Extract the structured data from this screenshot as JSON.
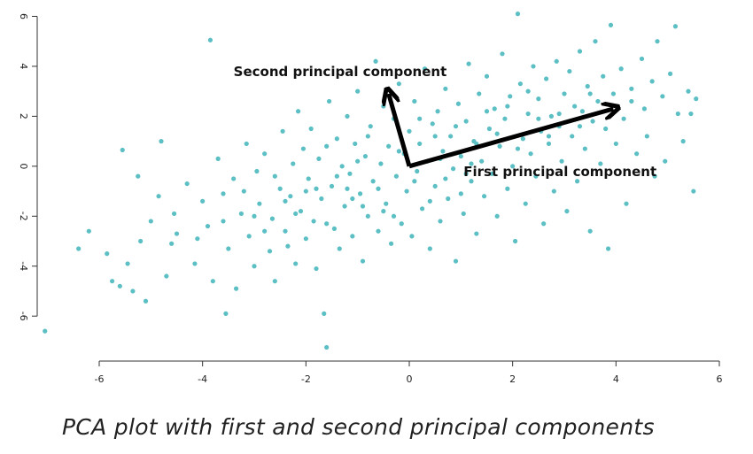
{
  "caption": "PCA plot with first and second principal components",
  "chart_data": {
    "type": "scatter",
    "title": "",
    "xlabel": "",
    "ylabel": "",
    "xlim": [
      -7.2,
      6.0
    ],
    "ylim": [
      -7.8,
      6.3
    ],
    "xticks": [
      -6,
      -4,
      -2,
      0,
      2,
      4,
      6
    ],
    "yticks": [
      -6,
      -4,
      -2,
      0,
      2,
      4,
      6
    ],
    "grid": false,
    "point_color": "#5bbfc4",
    "arrow_color": "#000000",
    "annotations": [
      {
        "text": "Second principal component",
        "x": -3.4,
        "y": 3.6
      },
      {
        "text": "First principal component",
        "x": 1.05,
        "y": -0.4
      }
    ],
    "arrows": [
      {
        "name": "second-principal-component",
        "from": [
          0,
          0
        ],
        "to": [
          -0.4,
          2.9
        ]
      },
      {
        "name": "first-principal-component",
        "from": [
          0,
          0
        ],
        "to": [
          3.95,
          2.3
        ]
      }
    ],
    "points": [
      [
        -7.05,
        -6.6
      ],
      [
        -6.4,
        -3.3
      ],
      [
        -6.2,
        -2.6
      ],
      [
        -5.85,
        -3.5
      ],
      [
        -5.75,
        -4.6
      ],
      [
        -5.6,
        -4.8
      ],
      [
        -5.45,
        -3.9
      ],
      [
        -5.35,
        -5.0
      ],
      [
        -5.2,
        -3.0
      ],
      [
        -5.1,
        -5.4
      ],
      [
        -5.55,
        0.65
      ],
      [
        -5.25,
        -0.4
      ],
      [
        -5.0,
        -2.2
      ],
      [
        -4.85,
        -1.2
      ],
      [
        -4.8,
        1.0
      ],
      [
        -4.6,
        -3.1
      ],
      [
        -4.55,
        -1.9
      ],
      [
        -4.5,
        -2.7
      ],
      [
        -4.7,
        -4.4
      ],
      [
        -4.3,
        -0.7
      ],
      [
        -4.15,
        -3.9
      ],
      [
        -4.0,
        -1.4
      ],
      [
        -3.9,
        -2.4
      ],
      [
        -3.85,
        5.05
      ],
      [
        -3.8,
        -4.6
      ],
      [
        -3.7,
        0.3
      ],
      [
        -3.6,
        -1.1
      ],
      [
        -3.55,
        -5.9
      ],
      [
        -3.5,
        -3.3
      ],
      [
        -3.4,
        -0.5
      ],
      [
        -3.35,
        -4.9
      ],
      [
        -3.25,
        -1.9
      ],
      [
        -3.15,
        0.9
      ],
      [
        -3.1,
        -2.8
      ],
      [
        -3.0,
        -4.0
      ],
      [
        -2.95,
        -0.2
      ],
      [
        -2.9,
        -1.5
      ],
      [
        -2.8,
        0.5
      ],
      [
        -2.7,
        -3.4
      ],
      [
        -2.65,
        -2.1
      ],
      [
        -2.6,
        -4.6
      ],
      [
        -2.5,
        -0.9
      ],
      [
        -2.45,
        1.4
      ],
      [
        -2.4,
        -2.6
      ],
      [
        -2.3,
        -1.2
      ],
      [
        -2.25,
        0.1
      ],
      [
        -2.2,
        -3.9
      ],
      [
        -2.15,
        2.2
      ],
      [
        -2.1,
        -1.8
      ],
      [
        -2.05,
        0.7
      ],
      [
        -2.0,
        -2.9
      ],
      [
        -1.95,
        -0.5
      ],
      [
        -1.9,
        1.5
      ],
      [
        -1.85,
        -2.2
      ],
      [
        -1.8,
        -4.1
      ],
      [
        -1.75,
        0.3
      ],
      [
        -1.7,
        -1.3
      ],
      [
        -1.65,
        -5.9
      ],
      [
        -1.6,
        -7.25
      ],
      [
        -1.55,
        2.6
      ],
      [
        -1.5,
        -0.8
      ],
      [
        -1.45,
        -2.5
      ],
      [
        -1.4,
        1.1
      ],
      [
        -1.35,
        -3.3
      ],
      [
        -1.3,
        0.0
      ],
      [
        -1.25,
        -1.6
      ],
      [
        -1.2,
        2.0
      ],
      [
        -1.15,
        -0.3
      ],
      [
        -1.1,
        -2.8
      ],
      [
        -1.05,
        0.9
      ],
      [
        -1.0,
        3.0
      ],
      [
        -0.95,
        -1.1
      ],
      [
        -0.9,
        -3.8
      ],
      [
        -0.85,
        0.4
      ],
      [
        -0.8,
        -2.0
      ],
      [
        -0.75,
        1.6
      ],
      [
        -0.7,
        -0.6
      ],
      [
        -0.65,
        4.2
      ],
      [
        -0.6,
        -2.6
      ],
      [
        -0.55,
        0.1
      ],
      [
        -0.5,
        2.4
      ],
      [
        -0.45,
        -1.5
      ],
      [
        -0.4,
        0.8
      ],
      [
        -0.35,
        -3.1
      ],
      [
        -0.3,
        1.9
      ],
      [
        -0.25,
        -0.4
      ],
      [
        -0.2,
        3.3
      ],
      [
        -0.15,
        -2.3
      ],
      [
        -0.1,
        0.5
      ],
      [
        -0.05,
        -1.0
      ],
      [
        0.0,
        1.4
      ],
      [
        0.05,
        -2.8
      ],
      [
        0.1,
        2.6
      ],
      [
        0.15,
        -0.2
      ],
      [
        0.2,
        0.9
      ],
      [
        0.25,
        -1.7
      ],
      [
        0.3,
        3.9
      ],
      [
        0.35,
        0.2
      ],
      [
        0.4,
        -3.3
      ],
      [
        0.45,
        1.7
      ],
      [
        0.5,
        -0.8
      ],
      [
        0.55,
        2.2
      ],
      [
        0.6,
        -2.2
      ],
      [
        0.65,
        0.6
      ],
      [
        0.7,
        3.1
      ],
      [
        0.75,
        -1.3
      ],
      [
        0.8,
        1.2
      ],
      [
        0.85,
        -0.1
      ],
      [
        0.9,
        -3.8
      ],
      [
        0.95,
        2.5
      ],
      [
        1.0,
        0.4
      ],
      [
        1.05,
        -1.9
      ],
      [
        1.1,
        1.8
      ],
      [
        1.15,
        4.1
      ],
      [
        1.2,
        -0.6
      ],
      [
        1.25,
        1.0
      ],
      [
        1.3,
        -2.7
      ],
      [
        1.35,
        2.9
      ],
      [
        1.4,
        0.2
      ],
      [
        1.45,
        -1.2
      ],
      [
        1.5,
        3.6
      ],
      [
        1.55,
        1.5
      ],
      [
        1.6,
        -0.3
      ],
      [
        1.65,
        2.3
      ],
      [
        1.7,
        -2.0
      ],
      [
        1.75,
        0.8
      ],
      [
        1.8,
        4.5
      ],
      [
        1.85,
        1.9
      ],
      [
        1.9,
        -0.9
      ],
      [
        1.95,
        2.8
      ],
      [
        2.0,
        0.0
      ],
      [
        2.05,
        -3.0
      ],
      [
        2.1,
        6.1
      ],
      [
        2.15,
        3.3
      ],
      [
        2.2,
        1.1
      ],
      [
        2.25,
        -1.5
      ],
      [
        2.3,
        2.1
      ],
      [
        2.35,
        0.5
      ],
      [
        2.4,
        4.0
      ],
      [
        2.45,
        -0.4
      ],
      [
        2.5,
        2.7
      ],
      [
        2.55,
        1.4
      ],
      [
        2.6,
        -2.3
      ],
      [
        2.65,
        3.5
      ],
      [
        2.7,
        0.9
      ],
      [
        2.75,
        2.0
      ],
      [
        2.8,
        -1.0
      ],
      [
        2.85,
        4.2
      ],
      [
        2.9,
        1.6
      ],
      [
        2.95,
        0.2
      ],
      [
        3.0,
        2.9
      ],
      [
        3.05,
        -1.8
      ],
      [
        3.1,
        3.8
      ],
      [
        3.15,
        1.2
      ],
      [
        3.2,
        2.4
      ],
      [
        3.25,
        -0.6
      ],
      [
        3.3,
        4.6
      ],
      [
        3.35,
        2.2
      ],
      [
        3.4,
        0.7
      ],
      [
        3.45,
        3.2
      ],
      [
        3.5,
        -2.6
      ],
      [
        3.55,
        1.8
      ],
      [
        3.6,
        5.0
      ],
      [
        3.65,
        2.6
      ],
      [
        3.7,
        0.1
      ],
      [
        3.75,
        3.6
      ],
      [
        3.8,
        1.5
      ],
      [
        3.85,
        -3.3
      ],
      [
        3.9,
        5.65
      ],
      [
        3.95,
        2.9
      ],
      [
        4.0,
        0.9
      ],
      [
        4.1,
        3.9
      ],
      [
        4.15,
        1.9
      ],
      [
        4.2,
        -1.5
      ],
      [
        4.3,
        3.1
      ],
      [
        4.4,
        0.5
      ],
      [
        4.5,
        4.3
      ],
      [
        4.55,
        2.3
      ],
      [
        4.6,
        1.2
      ],
      [
        4.7,
        3.4
      ],
      [
        4.75,
        -0.4
      ],
      [
        4.8,
        5.0
      ],
      [
        4.9,
        2.8
      ],
      [
        4.95,
        0.2
      ],
      [
        5.05,
        3.7
      ],
      [
        5.15,
        5.6
      ],
      [
        5.2,
        2.1
      ],
      [
        5.3,
        1.0
      ],
      [
        5.4,
        3.0
      ],
      [
        5.5,
        -1.0
      ],
      [
        5.55,
        2.7
      ],
      [
        5.45,
        2.1
      ],
      [
        -3.2,
        -1.0
      ],
      [
        -2.8,
        -2.6
      ],
      [
        -2.35,
        -3.2
      ],
      [
        -2.0,
        -1.0
      ],
      [
        -1.6,
        -2.3
      ],
      [
        -1.2,
        -0.9
      ],
      [
        -0.9,
        -1.6
      ],
      [
        -0.6,
        -0.9
      ],
      [
        -0.3,
        -2.0
      ],
      [
        0.1,
        -0.6
      ],
      [
        0.4,
        -1.4
      ],
      [
        0.7,
        -0.5
      ],
      [
        1.0,
        -1.1
      ],
      [
        1.3,
        0.9
      ],
      [
        1.7,
        1.3
      ],
      [
        2.1,
        0.7
      ],
      [
        2.5,
        1.9
      ],
      [
        2.9,
        2.1
      ],
      [
        3.3,
        1.6
      ],
      [
        -1.0,
        0.2
      ],
      [
        -1.4,
        -0.4
      ],
      [
        -1.8,
        -0.9
      ],
      [
        -2.2,
        -1.9
      ],
      [
        -0.5,
        -1.8
      ],
      [
        0.6,
        0.3
      ],
      [
        1.2,
        0.1
      ],
      [
        1.9,
        2.4
      ],
      [
        2.3,
        3.0
      ],
      [
        0.2,
        1.9
      ],
      [
        -0.8,
        1.2
      ],
      [
        -1.6,
        0.8
      ],
      [
        -2.6,
        -0.4
      ],
      [
        -3.0,
        -2.0
      ],
      [
        -3.6,
        -2.2
      ],
      [
        -4.1,
        -2.9
      ],
      [
        0.9,
        1.6
      ],
      [
        1.5,
        2.2
      ],
      [
        2.7,
        1.2
      ],
      [
        3.5,
        2.9
      ],
      [
        4.3,
        2.6
      ],
      [
        -0.2,
        0.6
      ],
      [
        0.5,
        1.2
      ],
      [
        1.1,
        -0.3
      ],
      [
        -1.1,
        -1.3
      ],
      [
        -2.4,
        -1.4
      ]
    ]
  }
}
